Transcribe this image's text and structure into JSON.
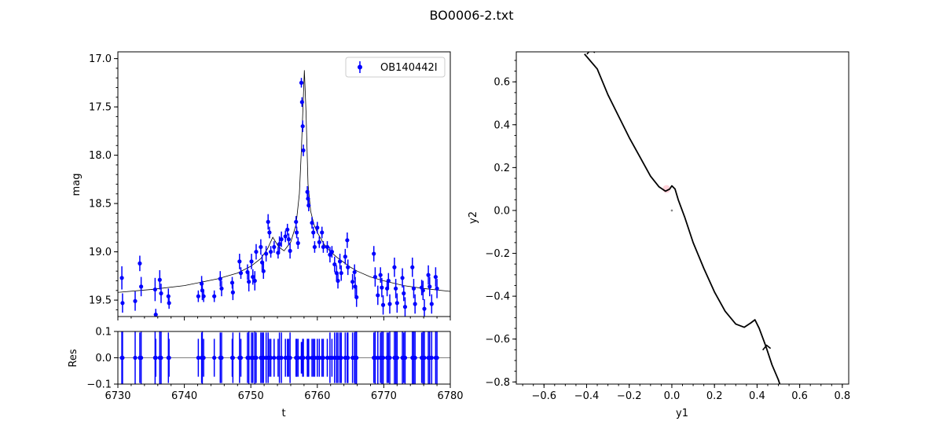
{
  "figure": {
    "title": "BO0006-2.txt"
  },
  "chart_data": [
    {
      "panel": "light-curve",
      "type": "scatter",
      "xlabel": "",
      "ylabel": "mag",
      "xlim": [
        6730,
        6780
      ],
      "ylim": [
        19.67,
        16.93
      ],
      "y_inverted": true,
      "xticks": [
        "6730",
        "6740",
        "6750",
        "6760",
        "6770",
        "6780"
      ],
      "yticks": [
        "17.0",
        "17.5",
        "18.0",
        "18.5",
        "19.0",
        "19.5"
      ],
      "legend": {
        "position": "top-right",
        "label": "OB140442I",
        "color": "#0000ff"
      },
      "series": [
        {
          "name": "OB140442I",
          "color": "#0000ff",
          "points": [
            [
              6730.6,
              19.27,
              0.12
            ],
            [
              6730.7,
              19.53,
              0.1
            ],
            [
              6732.6,
              19.51,
              0.1
            ],
            [
              6733.3,
              19.12,
              0.08
            ],
            [
              6733.5,
              19.36,
              0.1
            ],
            [
              6735.6,
              19.39,
              0.12
            ],
            [
              6735.7,
              19.65,
              0.06
            ],
            [
              6736.3,
              19.29,
              0.1
            ],
            [
              6736.5,
              19.43,
              0.1
            ],
            [
              6737.6,
              19.46,
              0.08
            ],
            [
              6737.7,
              19.53,
              0.06
            ],
            [
              6742.1,
              19.46,
              0.06
            ],
            [
              6742.6,
              19.33,
              0.08
            ],
            [
              6742.7,
              19.4,
              0.1
            ],
            [
              6742.9,
              19.46,
              0.06
            ],
            [
              6744.5,
              19.46,
              0.06
            ],
            [
              6745.4,
              19.28,
              0.08
            ],
            [
              6745.6,
              19.38,
              0.08
            ],
            [
              6747.2,
              19.32,
              0.06
            ],
            [
              6747.3,
              19.42,
              0.08
            ],
            [
              6748.3,
              19.1,
              0.08
            ],
            [
              6748.5,
              19.22,
              0.06
            ],
            [
              6749.5,
              19.21,
              0.08
            ],
            [
              6749.7,
              19.31,
              0.1
            ],
            [
              6750.1,
              19.1,
              0.08
            ],
            [
              6750.3,
              19.26,
              0.08
            ],
            [
              6750.6,
              19.3,
              0.1
            ],
            [
              6750.8,
              19.0,
              0.08
            ],
            [
              6751.5,
              18.95,
              0.08
            ],
            [
              6751.7,
              19.11,
              0.08
            ],
            [
              6751.9,
              19.2,
              0.08
            ],
            [
              6752.3,
              19.02,
              0.08
            ],
            [
              6752.6,
              18.69,
              0.08
            ],
            [
              6752.8,
              18.8,
              0.06
            ],
            [
              6753.0,
              19.0,
              0.06
            ],
            [
              6753.5,
              18.95,
              0.06
            ],
            [
              6754.1,
              19.01,
              0.06
            ],
            [
              6754.3,
              18.92,
              0.08
            ],
            [
              6754.6,
              18.87,
              0.08
            ],
            [
              6755.2,
              18.84,
              0.06
            ],
            [
              6755.5,
              18.77,
              0.06
            ],
            [
              6755.7,
              18.87,
              0.06
            ],
            [
              6755.9,
              18.99,
              0.08
            ],
            [
              6756.8,
              18.69,
              0.06
            ],
            [
              6756.9,
              18.8,
              0.06
            ],
            [
              6757.1,
              18.91,
              0.06
            ],
            [
              6757.6,
              17.25,
              0.05
            ],
            [
              6757.7,
              17.45,
              0.05
            ],
            [
              6757.8,
              17.7,
              0.06
            ],
            [
              6757.9,
              17.95,
              0.06
            ],
            [
              6758.5,
              18.38,
              0.06
            ],
            [
              6758.6,
              18.45,
              0.06
            ],
            [
              6758.7,
              18.52,
              0.06
            ],
            [
              6759.2,
              18.7,
              0.06
            ],
            [
              6759.4,
              18.8,
              0.06
            ],
            [
              6759.6,
              18.95,
              0.06
            ],
            [
              6760.0,
              18.75,
              0.06
            ],
            [
              6760.3,
              18.9,
              0.06
            ],
            [
              6760.7,
              18.8,
              0.06
            ],
            [
              6760.9,
              18.95,
              0.06
            ],
            [
              6761.5,
              18.95,
              0.06
            ],
            [
              6761.9,
              19.03,
              0.08
            ],
            [
              6762.2,
              19.0,
              0.06
            ],
            [
              6762.6,
              19.13,
              0.08
            ],
            [
              6762.9,
              19.22,
              0.08
            ],
            [
              6763.1,
              19.3,
              0.08
            ],
            [
              6763.4,
              19.1,
              0.08
            ],
            [
              6763.6,
              19.22,
              0.08
            ],
            [
              6764.2,
              19.05,
              0.08
            ],
            [
              6764.5,
              18.88,
              0.08
            ],
            [
              6764.6,
              19.16,
              0.08
            ],
            [
              6765.3,
              19.31,
              0.08
            ],
            [
              6765.6,
              19.21,
              0.08
            ],
            [
              6765.7,
              19.36,
              0.1
            ],
            [
              6765.9,
              19.47,
              0.1
            ],
            [
              6768.5,
              19.02,
              0.08
            ],
            [
              6768.7,
              19.26,
              0.1
            ],
            [
              6769.1,
              19.45,
              0.1
            ],
            [
              6769.5,
              19.24,
              0.08
            ],
            [
              6769.7,
              19.37,
              0.1
            ],
            [
              6769.9,
              19.55,
              0.1
            ],
            [
              6770.5,
              19.38,
              0.08
            ],
            [
              6770.7,
              19.3,
              0.08
            ],
            [
              6770.9,
              19.54,
              0.1
            ],
            [
              6771.6,
              19.16,
              0.1
            ],
            [
              6771.8,
              19.38,
              0.1
            ],
            [
              6772.0,
              19.53,
              0.1
            ],
            [
              6772.8,
              19.27,
              0.1
            ],
            [
              6773.0,
              19.43,
              0.08
            ],
            [
              6773.2,
              19.57,
              0.1
            ],
            [
              6774.3,
              19.16,
              0.1
            ],
            [
              6774.5,
              19.38,
              0.1
            ],
            [
              6774.7,
              19.54,
              0.1
            ],
            [
              6775.7,
              19.37,
              0.08
            ],
            [
              6775.9,
              19.4,
              0.1
            ],
            [
              6776.1,
              19.59,
              0.1
            ],
            [
              6776.7,
              19.24,
              0.1
            ],
            [
              6776.9,
              19.36,
              0.1
            ],
            [
              6777.2,
              19.54,
              0.1
            ],
            [
              6777.8,
              19.26,
              0.1
            ],
            [
              6778.0,
              19.38,
              0.1
            ]
          ]
        },
        {
          "name": "",
          "type": "line",
          "color": "#000000",
          "x": [
            6730,
            6735,
            6740,
            6745,
            6748,
            6750,
            6751.5,
            6752.5,
            6753.3,
            6754.2,
            6755,
            6756,
            6756.8,
            6757.3,
            6757.6,
            6757.9,
            6758.05,
            6758.3,
            6758.6,
            6759,
            6759.5,
            6760,
            6761,
            6762,
            6763,
            6764,
            6765,
            6766,
            6768,
            6770,
            6773,
            6776,
            6780
          ],
          "y": [
            19.42,
            19.39,
            19.35,
            19.28,
            19.22,
            19.15,
            19.07,
            18.97,
            18.85,
            18.95,
            18.99,
            18.9,
            18.72,
            18.4,
            17.95,
            17.4,
            17.12,
            17.55,
            18.3,
            18.58,
            18.72,
            18.8,
            18.92,
            19.0,
            19.06,
            19.11,
            19.16,
            19.2,
            19.26,
            19.3,
            19.35,
            19.38,
            19.41
          ]
        }
      ]
    },
    {
      "panel": "residuals",
      "type": "scatter",
      "xlabel": "t",
      "ylabel": "Res",
      "xlim": [
        6730,
        6780
      ],
      "ylim": [
        -0.1,
        0.1
      ],
      "xticks": [
        "6730",
        "6740",
        "6750",
        "6760",
        "6770",
        "6780"
      ],
      "yticks": [
        "-0.1",
        "0.0",
        "0.1"
      ],
      "zero_line": true
    },
    {
      "panel": "trajectory",
      "type": "line",
      "xlabel": "y1",
      "ylabel": "y2",
      "xlim": [
        -0.73,
        0.83
      ],
      "ylim": [
        -0.81,
        0.74
      ],
      "xticks": [
        "-0.6",
        "-0.4",
        "-0.2",
        "0.0",
        "0.2",
        "0.4",
        "0.6",
        "0.8"
      ],
      "yticks": [
        "-0.8",
        "-0.6",
        "-0.4",
        "-0.2",
        "0.0",
        "0.2",
        "0.4",
        "0.6"
      ],
      "series": [
        {
          "name": "",
          "color": "#000000",
          "x": [
            -0.41,
            -0.35,
            -0.3,
            -0.25,
            -0.2,
            -0.15,
            -0.1,
            -0.06,
            -0.03,
            -0.01,
            0.0,
            0.015,
            0.03,
            0.06,
            0.1,
            0.15,
            0.2,
            0.25,
            0.3,
            0.34,
            0.37,
            0.39,
            0.41,
            0.44,
            0.47,
            0.5,
            0.51
          ],
          "y": [
            0.73,
            0.66,
            0.54,
            0.44,
            0.34,
            0.25,
            0.16,
            0.11,
            0.09,
            0.1,
            0.115,
            0.1,
            0.05,
            -0.03,
            -0.15,
            -0.27,
            -0.38,
            -0.47,
            -0.53,
            -0.545,
            -0.525,
            -0.51,
            -0.55,
            -0.63,
            -0.72,
            -0.79,
            -0.82
          ]
        }
      ],
      "arrows": [
        {
          "x": -0.38,
          "y": 0.74
        },
        {
          "x": 0.445,
          "y": -0.64
        }
      ],
      "markers": [
        {
          "x": -0.025,
          "y": 0.1,
          "color": "#ffb6c1"
        },
        {
          "x": 0.0,
          "y": 0.0,
          "color": "#888888"
        }
      ]
    }
  ]
}
